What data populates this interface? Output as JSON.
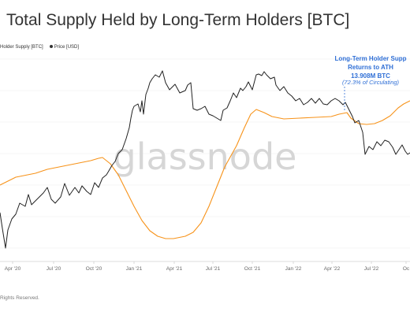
{
  "page": {
    "title": "Total Supply Held by Long-Term Holders [BTC]",
    "footer": "Rights Reserved."
  },
  "chart_data": {
    "type": "line",
    "title": "Total Supply Held by Long-Term Holders [BTC]",
    "x_tick_labels": [
      "Apr '20",
      "Jul '20",
      "Oct '20",
      "Jan '21",
      "Apr '21",
      "Jul '21",
      "Oct '21",
      "Jan '22",
      "Apr '22",
      "Jul '22",
      "Oc"
    ],
    "legend": [
      {
        "label": "Holder Supply [BTC]",
        "color": "#f7931a"
      },
      {
        "label": "Price [USD]",
        "color": "#333333"
      }
    ],
    "grid": true,
    "watermark": "glassnode",
    "annotation": {
      "line1": "Long-Term Holder Supp",
      "line2": "Returns to ATH",
      "line3": "13.908M BTC",
      "line4": "(72.3% of Circulating)",
      "color": "#2f6fd6"
    },
    "series": [
      {
        "name": "Holder Supply [BTC]",
        "color": "#f7931a",
        "values": [
          [
            0,
            235
          ],
          [
            20,
            225
          ],
          [
            45,
            220
          ],
          [
            60,
            215
          ],
          [
            80,
            211
          ],
          [
            100,
            207
          ],
          [
            115,
            204
          ],
          [
            125,
            201
          ],
          [
            130,
            200
          ],
          [
            140,
            208
          ],
          [
            150,
            222
          ],
          [
            160,
            242
          ],
          [
            170,
            262
          ],
          [
            180,
            280
          ],
          [
            190,
            293
          ],
          [
            200,
            300
          ],
          [
            210,
            303
          ],
          [
            220,
            303
          ],
          [
            235,
            300
          ],
          [
            245,
            295
          ],
          [
            255,
            283
          ],
          [
            265,
            262
          ],
          [
            275,
            237
          ],
          [
            285,
            212
          ],
          [
            300,
            185
          ],
          [
            310,
            162
          ],
          [
            318,
            145
          ],
          [
            325,
            139
          ],
          [
            335,
            143
          ],
          [
            345,
            148
          ],
          [
            360,
            151
          ],
          [
            380,
            150
          ],
          [
            400,
            149
          ],
          [
            420,
            148
          ],
          [
            430,
            145
          ],
          [
            440,
            143
          ],
          [
            445,
            150
          ],
          [
            455,
            157
          ],
          [
            465,
            158
          ],
          [
            475,
            157
          ],
          [
            485,
            153
          ],
          [
            495,
            147
          ],
          [
            505,
            137
          ],
          [
            512,
            132
          ],
          [
            520,
            128
          ]
        ]
      },
      {
        "name": "Price [USD]",
        "color": "#222222",
        "values": [
          [
            0,
            270
          ],
          [
            3,
            290
          ],
          [
            7,
            315
          ],
          [
            10,
            292
          ],
          [
            15,
            278
          ],
          [
            20,
            272
          ],
          [
            25,
            258
          ],
          [
            32,
            262
          ],
          [
            36,
            247
          ],
          [
            40,
            260
          ],
          [
            45,
            255
          ],
          [
            50,
            250
          ],
          [
            55,
            245
          ],
          [
            60,
            238
          ],
          [
            65,
            253
          ],
          [
            70,
            258
          ],
          [
            77,
            250
          ],
          [
            82,
            233
          ],
          [
            88,
            248
          ],
          [
            95,
            238
          ],
          [
            100,
            245
          ],
          [
            104,
            236
          ],
          [
            110,
            243
          ],
          [
            115,
            247
          ],
          [
            120,
            232
          ],
          [
            125,
            238
          ],
          [
            130,
            226
          ],
          [
            135,
            222
          ],
          [
            138,
            217
          ],
          [
            142,
            210
          ],
          [
            146,
            205
          ],
          [
            150,
            195
          ],
          [
            155,
            190
          ],
          [
            160,
            176
          ],
          [
            164,
            162
          ],
          [
            166,
            150
          ],
          [
            168,
            140
          ],
          [
            170,
            135
          ],
          [
            175,
            132
          ],
          [
            178,
            142
          ],
          [
            180,
            128
          ],
          [
            182,
            145
          ],
          [
            185,
            120
          ],
          [
            188,
            112
          ],
          [
            190,
            105
          ],
          [
            193,
            100
          ],
          [
            197,
            95
          ],
          [
            202,
            98
          ],
          [
            206,
            90
          ],
          [
            210,
            105
          ],
          [
            215,
            114
          ],
          [
            222,
            107
          ],
          [
            228,
            118
          ],
          [
            235,
            115
          ],
          [
            238,
            108
          ],
          [
            242,
            105
          ],
          [
            245,
            138
          ],
          [
            250,
            140
          ],
          [
            255,
            138
          ],
          [
            260,
            135
          ],
          [
            265,
            145
          ],
          [
            270,
            147
          ],
          [
            275,
            150
          ],
          [
            280,
            153
          ],
          [
            283,
            140
          ],
          [
            288,
            137
          ],
          [
            292,
            128
          ],
          [
            296,
            118
          ],
          [
            300,
            124
          ],
          [
            305,
            112
          ],
          [
            308,
            115
          ],
          [
            312,
            110
          ],
          [
            315,
            104
          ],
          [
            320,
            114
          ],
          [
            325,
            95
          ],
          [
            328,
            94
          ],
          [
            332,
            96
          ],
          [
            335,
            91
          ],
          [
            338,
            95
          ],
          [
            343,
            100
          ],
          [
            348,
            98
          ],
          [
            350,
            108
          ],
          [
            355,
            115
          ],
          [
            360,
            110
          ],
          [
            365,
            118
          ],
          [
            370,
            122
          ],
          [
            375,
            128
          ],
          [
            380,
            125
          ],
          [
            385,
            133
          ],
          [
            390,
            130
          ],
          [
            395,
            125
          ],
          [
            400,
            131
          ],
          [
            405,
            125
          ],
          [
            410,
            132
          ],
          [
            415,
            133
          ],
          [
            420,
            128
          ],
          [
            425,
            125
          ],
          [
            430,
            128
          ],
          [
            435,
            133
          ],
          [
            438,
            130
          ],
          [
            442,
            138
          ],
          [
            447,
            148
          ],
          [
            450,
            156
          ],
          [
            455,
            153
          ],
          [
            460,
            168
          ],
          [
            463,
            196
          ],
          [
            468,
            186
          ],
          [
            473,
            190
          ],
          [
            478,
            180
          ],
          [
            483,
            185
          ],
          [
            488,
            178
          ],
          [
            493,
            180
          ],
          [
            498,
            187
          ],
          [
            502,
            196
          ],
          [
            506,
            190
          ],
          [
            510,
            184
          ],
          [
            514,
            192
          ],
          [
            517,
            196
          ],
          [
            520,
            194
          ]
        ]
      }
    ]
  }
}
